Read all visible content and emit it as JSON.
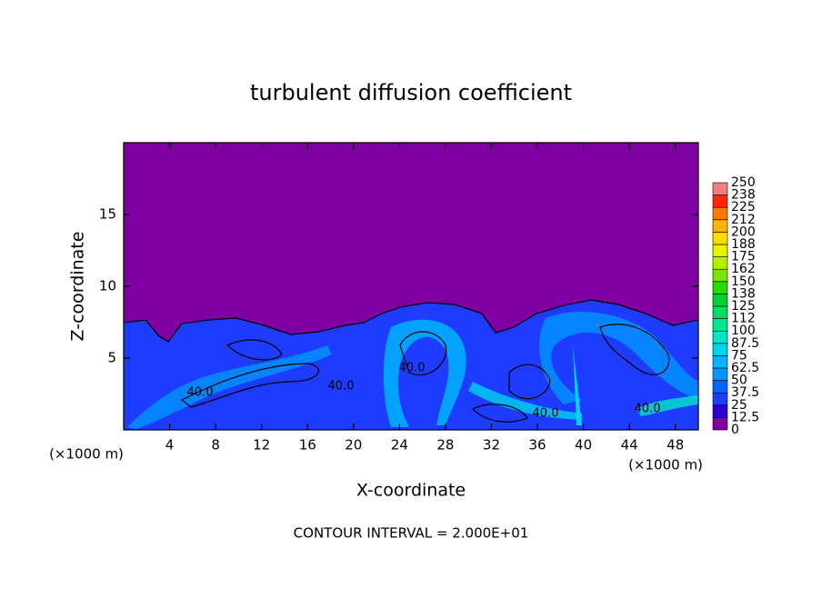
{
  "chart_data": {
    "type": "contour",
    "title": "turbulent diffusion coefficient",
    "x_label": "X-coordinate",
    "y_label": "Z-coordinate",
    "x_unit": "(×1000 m)",
    "footer": "CONTOUR INTERVAL = 2.000E+01",
    "xlim": [
      0,
      50
    ],
    "ylim": [
      0,
      20
    ],
    "xticks": [
      4,
      8,
      12,
      16,
      20,
      24,
      28,
      32,
      36,
      40,
      44,
      48
    ],
    "yticks": [
      5,
      10,
      15
    ],
    "annotations": [
      "40.0",
      "40.0",
      "40.0",
      "40.0",
      "40.0"
    ],
    "colorbar": {
      "levels": [
        0,
        12.5,
        25,
        37.5,
        50,
        62.5,
        75,
        87.5,
        100,
        {
          "value": 112.5,
          "label": "112"
        },
        125,
        {
          "value": 137.5,
          "label": "138"
        },
        150,
        {
          "value": 162.5,
          "label": "162"
        },
        175,
        {
          "value": 187.5,
          "label": "188"
        },
        200,
        {
          "value": 212.5,
          "label": "212"
        },
        225,
        {
          "value": 237.5,
          "label": "238"
        },
        250
      ],
      "colors": [
        "#7f00a0",
        "#2800d2",
        "#1e3cff",
        "#0064ff",
        "#0096ff",
        "#00b4ff",
        "#00d2f0",
        "#00e6c8",
        "#00e696",
        "#00dc64",
        "#00d232",
        "#28dc00",
        "#78e600",
        "#b4f000",
        "#e6f000",
        "#ffdc00",
        "#ffb400",
        "#ff7800",
        "#ff2800",
        "#f08080"
      ]
    }
  }
}
